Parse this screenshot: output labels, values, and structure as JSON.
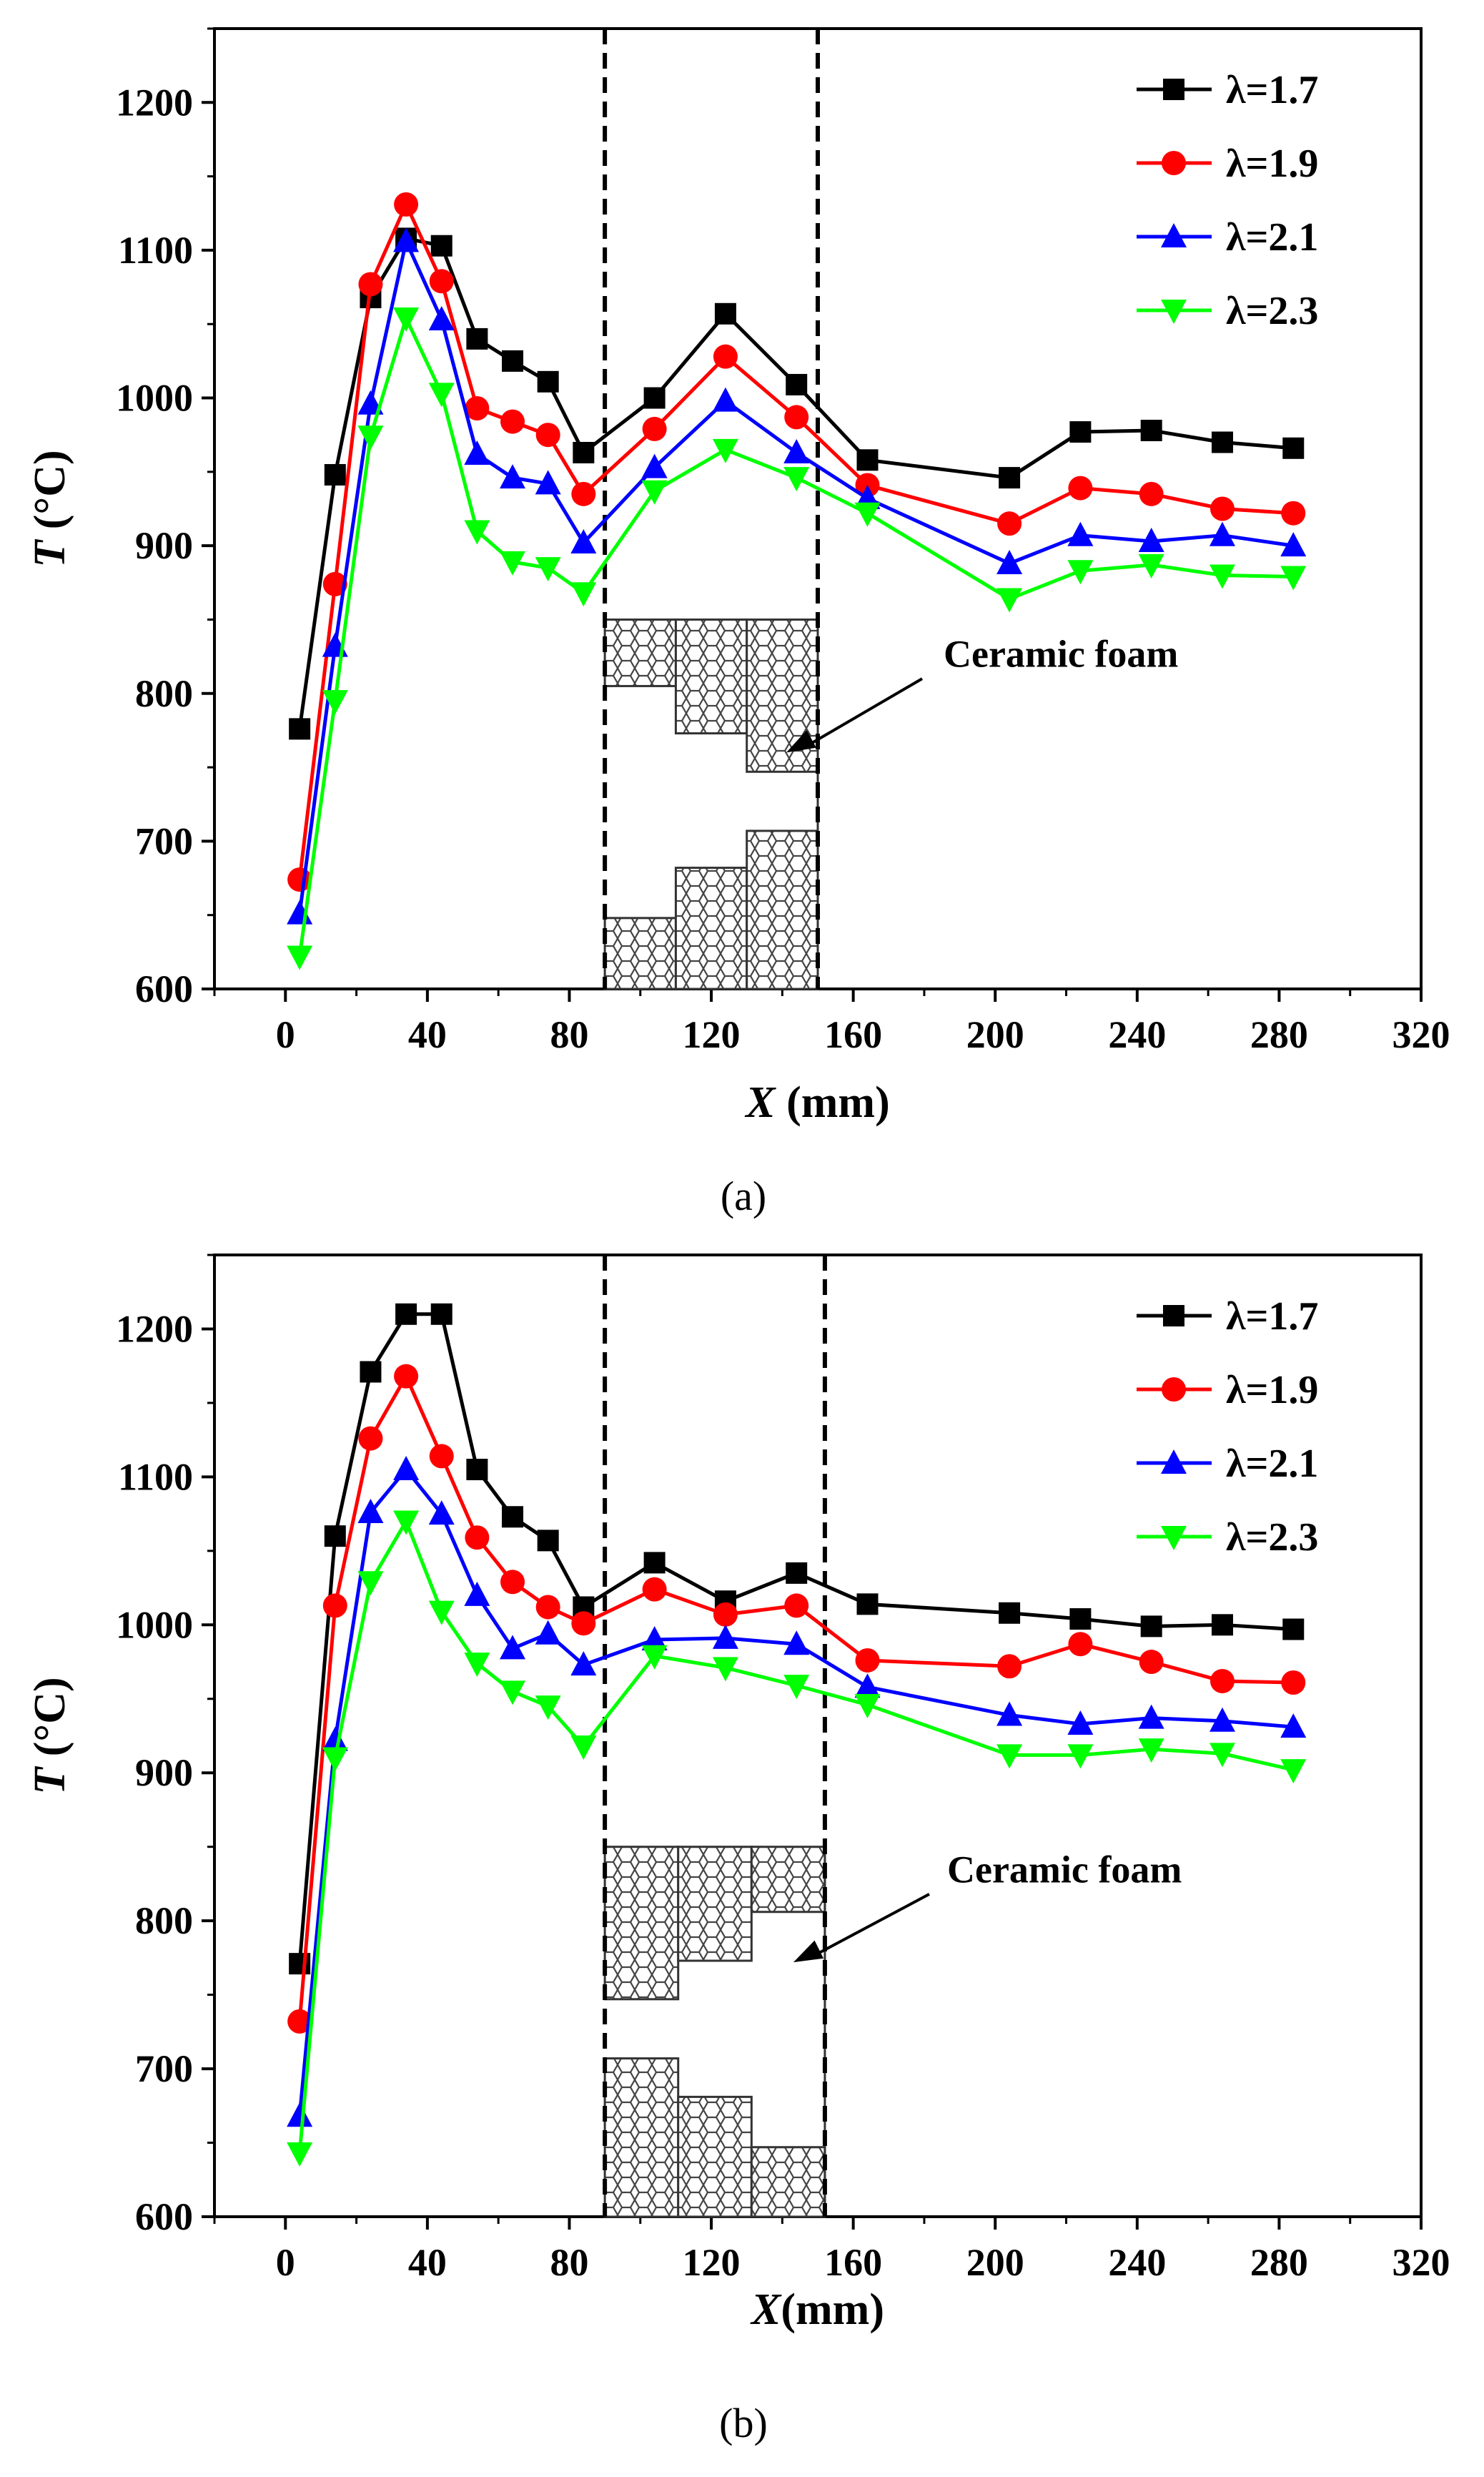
{
  "chart_data": [
    {
      "type": "line",
      "caption": "(a)",
      "x": [
        4,
        14,
        24,
        34,
        44,
        54,
        64,
        74,
        84,
        104,
        124,
        144,
        164,
        204,
        224,
        244,
        264,
        284
      ],
      "series": [
        {
          "name": "λ=1.7",
          "color": "#000000",
          "marker": "square",
          "values": [
            776,
            948,
            1068,
            1108,
            1103,
            1040,
            1025,
            1011,
            963,
            1000,
            1057,
            1009,
            958,
            946,
            977,
            978,
            970,
            966
          ]
        },
        {
          "name": "λ=1.9",
          "color": "#ff0000",
          "marker": "circle",
          "values": [
            674,
            874,
            1077,
            1131,
            1079,
            993,
            984,
            975,
            935,
            979,
            1028,
            987,
            941,
            915,
            939,
            935,
            925,
            922
          ]
        },
        {
          "name": "λ=2.1",
          "color": "#0000ff",
          "marker": "triangle-up",
          "values": [
            651,
            832,
            996,
            1106,
            1053,
            962,
            946,
            942,
            902,
            953,
            998,
            963,
            932,
            888,
            907,
            903,
            907,
            900
          ]
        },
        {
          "name": "λ=2.3",
          "color": "#00ff00",
          "marker": "triangle-down",
          "values": [
            622,
            795,
            974,
            1054,
            1003,
            910,
            889,
            885,
            868,
            937,
            965,
            946,
            922,
            864,
            883,
            887,
            880,
            879
          ]
        }
      ],
      "xlim": [
        -20,
        320
      ],
      "ylim": [
        600,
        1250
      ],
      "xticks": [
        0,
        40,
        80,
        120,
        160,
        200,
        240,
        280,
        320
      ],
      "yticks": [
        600,
        700,
        800,
        900,
        1000,
        1100,
        1200
      ],
      "xlabel_symbol": "X",
      "xlabel_unit": " (mm)",
      "ylabel_symbol": "T",
      "ylabel_unit": " (°C)",
      "vlines": [
        90,
        150
      ],
      "annotation": "Ceramic foam"
    },
    {
      "type": "line",
      "caption": "(b)",
      "x": [
        4,
        14,
        24,
        34,
        44,
        54,
        64,
        74,
        84,
        104,
        124,
        144,
        164,
        204,
        224,
        244,
        264,
        284
      ],
      "series": [
        {
          "name": "λ=1.7",
          "color": "#000000",
          "marker": "square",
          "values": [
            771,
            1060,
            1171,
            1210,
            1210,
            1105,
            1073,
            1057,
            1012,
            1042,
            1016,
            1035,
            1014,
            1008,
            1004,
            999,
            1000,
            997
          ]
        },
        {
          "name": "λ=1.9",
          "color": "#ff0000",
          "marker": "circle",
          "values": [
            732,
            1013,
            1126,
            1168,
            1114,
            1059,
            1029,
            1012,
            1001,
            1024,
            1007,
            1013,
            976,
            972,
            987,
            975,
            962,
            961
          ]
        },
        {
          "name": "λ=2.1",
          "color": "#0000ff",
          "marker": "triangle-up",
          "values": [
            668,
            922,
            1076,
            1105,
            1075,
            1020,
            984,
            994,
            973,
            990,
            991,
            987,
            958,
            939,
            933,
            937,
            935,
            931
          ]
        },
        {
          "name": "λ=2.3",
          "color": "#00ff00",
          "marker": "triangle-down",
          "values": [
            643,
            910,
            1029,
            1070,
            1009,
            974,
            955,
            945,
            918,
            979,
            971,
            959,
            946,
            912,
            912,
            916,
            913,
            902
          ]
        }
      ],
      "xlim": [
        -20,
        320
      ],
      "ylim": [
        600,
        1250
      ],
      "xticks": [
        0,
        40,
        80,
        120,
        160,
        200,
        240,
        280,
        320
      ],
      "yticks": [
        600,
        700,
        800,
        900,
        1000,
        1100,
        1200
      ],
      "xlabel_symbol": "X",
      "xlabel_unit": "(mm)",
      "ylabel_symbol": "T",
      "ylabel_unit": " (°C)",
      "vlines": [
        90,
        152
      ],
      "annotation": "Ceramic foam"
    }
  ]
}
